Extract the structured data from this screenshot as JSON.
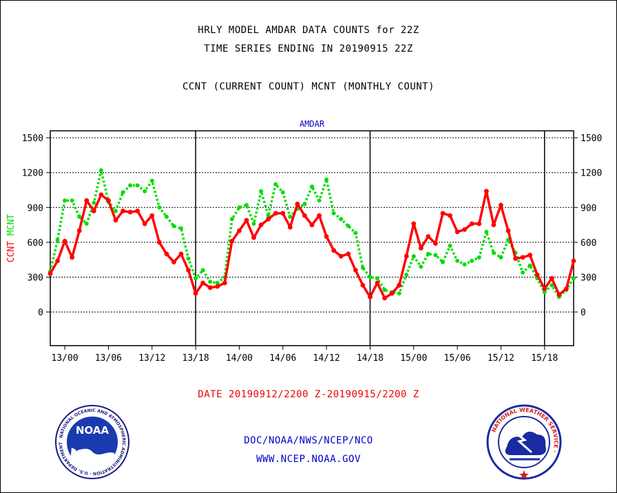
{
  "titles": {
    "line1": "HRLY MODEL AMDAR DATA COUNTS for 22Z",
    "line2": "TIME SERIES ENDING IN 20190915 22Z",
    "line3": "CCNT (CURRENT COUNT) MCNT (MONTHLY COUNT)"
  },
  "footer": {
    "date_range": "DATE 20190912/2200 Z-20190915/2200 Z",
    "agency": "DOC/NOAA/NWS/NCEP/NCO",
    "url": "WWW.NCEP.NOAA.GOV"
  },
  "logos": {
    "noaa_text": "NOAA",
    "noaa_ring": "NATIONAL OCEANIC AND ATMOSPHERIC ADMINISTRATION · U.S. DEPARTMENT OF COMMERCE ·",
    "nws_ring": "NATIONAL WEATHER SERVICE ·"
  },
  "colors": {
    "ccnt": "#ff0000",
    "mcnt": "#00dd00",
    "plot_title": "#0000cc",
    "date_text": "#ee0000",
    "agency_text": "#0000cc"
  },
  "chart_data": {
    "type": "line",
    "title": "AMDAR",
    "ylabel_parts": [
      "CCNT",
      "MCNT"
    ],
    "ylim": [
      -290,
      1560
    ],
    "yticks": [
      0,
      300,
      600,
      900,
      1200,
      1500
    ],
    "day_separators": [
      "13/18",
      "14/18",
      "15/18"
    ],
    "grid": "dotted horizontal",
    "x_tick_labels": [
      "13/00",
      "13/06",
      "13/12",
      "13/18",
      "14/00",
      "14/06",
      "14/12",
      "14/18",
      "15/00",
      "15/06",
      "15/12",
      "15/18"
    ],
    "x_tick_indices": [
      2,
      8,
      14,
      20,
      26,
      32,
      38,
      44,
      50,
      56,
      62,
      68
    ],
    "series": [
      {
        "name": "CCNT",
        "style": "solid",
        "values": [
          330,
          440,
          610,
          470,
          700,
          960,
          870,
          1010,
          960,
          790,
          870,
          860,
          870,
          760,
          830,
          600,
          500,
          430,
          500,
          360,
          160,
          250,
          210,
          220,
          250,
          610,
          700,
          790,
          640,
          750,
          800,
          850,
          850,
          730,
          930,
          830,
          750,
          830,
          650,
          530,
          480,
          500,
          360,
          230,
          130,
          250,
          120,
          160,
          230,
          480,
          760,
          550,
          650,
          590,
          850,
          830,
          690,
          710,
          760,
          760,
          1040,
          750,
          920,
          700,
          460,
          470,
          490,
          320,
          200,
          290,
          150,
          200,
          440
        ]
      },
      {
        "name": "MCNT",
        "style": "dotted",
        "values": [
          350,
          620,
          960,
          960,
          820,
          760,
          940,
          1220,
          950,
          870,
          1030,
          1090,
          1090,
          1040,
          1130,
          900,
          820,
          740,
          720,
          460,
          290,
          360,
          260,
          250,
          300,
          800,
          900,
          920,
          760,
          1040,
          830,
          1100,
          1030,
          820,
          890,
          930,
          1080,
          960,
          1140,
          850,
          800,
          740,
          680,
          380,
          300,
          290,
          190,
          170,
          160,
          320,
          480,
          390,
          500,
          490,
          430,
          570,
          440,
          410,
          440,
          470,
          690,
          510,
          470,
          620,
          510,
          340,
          400,
          290,
          170,
          230,
          130,
          190,
          290
        ]
      }
    ]
  }
}
